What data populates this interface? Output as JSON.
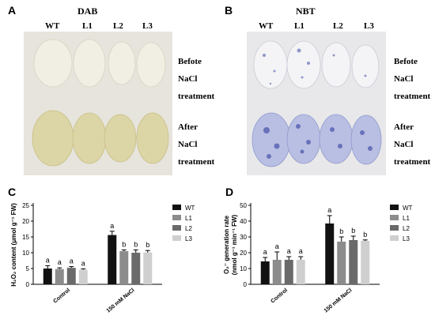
{
  "panels": {
    "A": {
      "label": "A",
      "title": "DAB",
      "columns": [
        "WT",
        "L1",
        "L2",
        "L3"
      ],
      "states": [
        {
          "lines": [
            "Befote",
            "NaCl",
            "treatment"
          ]
        },
        {
          "lines": [
            "After",
            "NaCl",
            "treatment"
          ]
        }
      ]
    },
    "B": {
      "label": "B",
      "title": "NBT",
      "columns": [
        "WT",
        "L1",
        "L2",
        "L3"
      ],
      "states": [
        {
          "lines": [
            "Befote",
            "NaCl",
            "treatment"
          ]
        },
        {
          "lines": [
            "After",
            "NaCl",
            "treatment"
          ]
        }
      ]
    }
  },
  "chart_data": [
    {
      "panel_label": "C",
      "type": "bar",
      "categories": [
        "Control",
        "150 mM NaCl"
      ],
      "series": [
        {
          "name": "WT",
          "values": [
            5.0,
            15.6
          ],
          "errors": [
            0.9,
            1.2
          ],
          "letters": [
            "a",
            "a"
          ],
          "color": "#111111"
        },
        {
          "name": "L1",
          "values": [
            4.8,
            10.5
          ],
          "errors": [
            0.4,
            0.4
          ],
          "letters": [
            "a",
            "b"
          ],
          "color": "#8c8c8c"
        },
        {
          "name": "L2",
          "values": [
            5.2,
            10.0
          ],
          "errors": [
            0.4,
            0.9
          ],
          "letters": [
            "a",
            "b"
          ],
          "color": "#6a6a6a"
        },
        {
          "name": "L3",
          "values": [
            4.6,
            10.1
          ],
          "errors": [
            0.3,
            0.6
          ],
          "letters": [
            "a",
            "b"
          ],
          "color": "#cfcfcf"
        }
      ],
      "ylabel": "H₂O₂ content (μmol g⁻¹ FW)",
      "ylim": [
        0,
        25
      ],
      "yticks": [
        0,
        5,
        10,
        15,
        20,
        25
      ],
      "legend_position": "right"
    },
    {
      "panel_label": "D",
      "type": "bar",
      "categories": [
        "Control",
        "150 mM NaCl"
      ],
      "series": [
        {
          "name": "WT",
          "values": [
            14.5,
            38.5
          ],
          "errors": [
            2.5,
            5.0
          ],
          "letters": [
            "a",
            "a"
          ],
          "color": "#111111"
        },
        {
          "name": "L1",
          "values": [
            15.5,
            27.0
          ],
          "errors": [
            5.0,
            3.0
          ],
          "letters": [
            "a",
            "b"
          ],
          "color": "#8c8c8c"
        },
        {
          "name": "L2",
          "values": [
            15.5,
            28.0
          ],
          "errors": [
            2.0,
            2.5
          ],
          "letters": [
            "a",
            "b"
          ],
          "color": "#6a6a6a"
        },
        {
          "name": "L3",
          "values": [
            15.5,
            27.5
          ],
          "errors": [
            2.0,
            0.6
          ],
          "letters": [
            "a",
            "b"
          ],
          "color": "#cfcfcf"
        }
      ],
      "ylabel": "O₂⁻ generation rate",
      "ylabel2": "(nmol g⁻¹ min⁻¹ FW)",
      "ylim": [
        0,
        50
      ],
      "yticks": [
        0,
        10,
        20,
        30,
        40,
        50
      ],
      "legend_position": "right"
    }
  ]
}
